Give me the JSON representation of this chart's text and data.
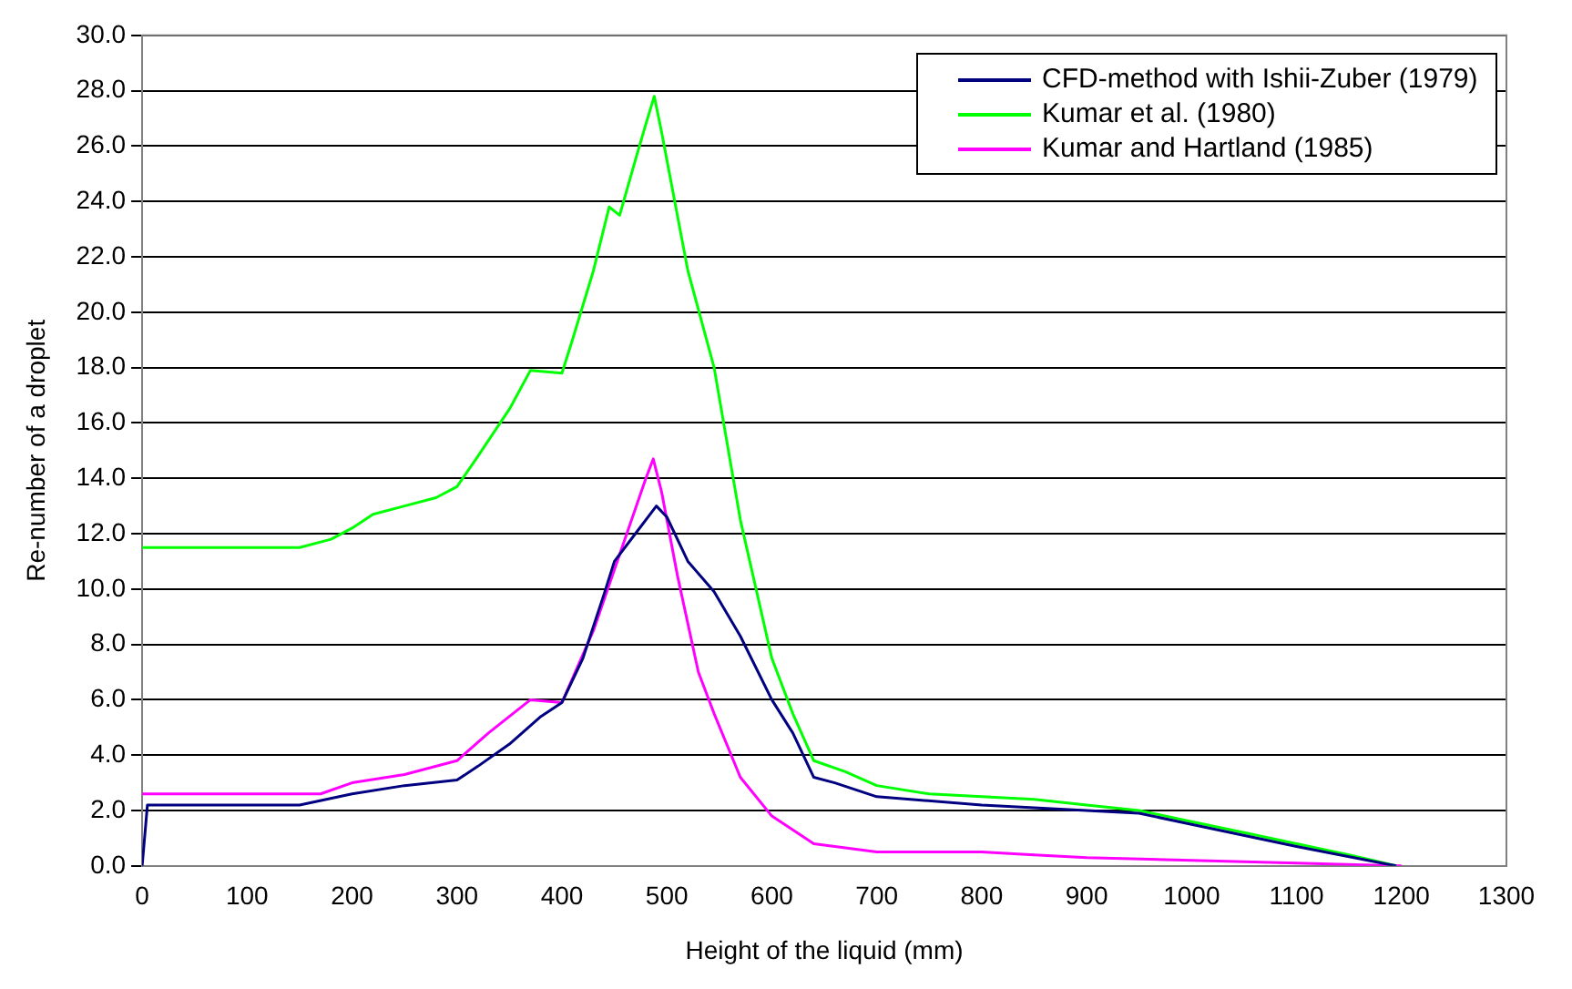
{
  "chart_data": {
    "type": "line",
    "xlabel": "Height of the liquid (mm)",
    "ylabel": "Re-number of a droplet",
    "xlim": [
      0,
      1300
    ],
    "xticks": [
      0,
      100,
      200,
      300,
      400,
      500,
      600,
      700,
      800,
      900,
      1000,
      1100,
      1200,
      1300
    ],
    "ylim": [
      0,
      30
    ],
    "yticks": [
      {
        "value": 0,
        "label": "0.0"
      },
      {
        "value": 2,
        "label": "2.0"
      },
      {
        "value": 4,
        "label": "4.0"
      },
      {
        "value": 6,
        "label": "6.0"
      },
      {
        "value": 8,
        "label": "8.0"
      },
      {
        "value": 10,
        "label": "10.0"
      },
      {
        "value": 12,
        "label": "12.0"
      },
      {
        "value": 14,
        "label": "14.0"
      },
      {
        "value": 16,
        "label": "16.0"
      },
      {
        "value": 18,
        "label": "18.0"
      },
      {
        "value": 20,
        "label": "20.0"
      },
      {
        "value": 22,
        "label": "22.0"
      },
      {
        "value": 24,
        "label": "24.0"
      },
      {
        "value": 26,
        "label": "26.0"
      },
      {
        "value": 28,
        "label": "28.0"
      },
      {
        "value": 30,
        "label": "30.0"
      }
    ],
    "grid": "y",
    "legend": "top right",
    "marker": "none",
    "line_style": "solid",
    "series": [
      {
        "name": "CFD-method with Ishii-Zuber (1979)",
        "color": "#000080",
        "x": [
          0,
          5,
          150,
          200,
          250,
          300,
          320,
          350,
          380,
          400,
          420,
          440,
          450,
          470,
          490,
          500,
          520,
          545,
          570,
          600,
          620,
          640,
          660,
          700,
          800,
          900,
          950,
          1000,
          1100,
          1195
        ],
        "values": [
          0,
          2.2,
          2.2,
          2.6,
          2.9,
          3.1,
          3.6,
          4.4,
          5.4,
          5.9,
          7.5,
          9.8,
          11.0,
          12.0,
          13.0,
          12.6,
          11.0,
          9.9,
          8.3,
          6.0,
          4.8,
          3.2,
          3.0,
          2.5,
          2.2,
          2.0,
          1.9,
          1.5,
          0.7,
          0
        ]
      },
      {
        "name": "Kumar et al. (1980)",
        "color": "#00ff00",
        "x": [
          0,
          150,
          180,
          200,
          220,
          250,
          280,
          300,
          320,
          350,
          370,
          400,
          410,
          430,
          445,
          455,
          470,
          480,
          488,
          495,
          500,
          520,
          545,
          570,
          600,
          620,
          640,
          670,
          700,
          750,
          800,
          850,
          900,
          950,
          1000,
          1050,
          1100,
          1150,
          1195
        ],
        "values": [
          11.5,
          11.5,
          11.8,
          12.2,
          12.7,
          13.0,
          13.3,
          13.7,
          14.8,
          16.5,
          17.9,
          17.8,
          19.0,
          21.5,
          23.8,
          23.5,
          25.5,
          26.8,
          27.8,
          26.5,
          25.5,
          21.5,
          18.0,
          12.5,
          7.5,
          5.5,
          3.8,
          3.4,
          2.9,
          2.6,
          2.5,
          2.4,
          2.2,
          2.0,
          1.6,
          1.2,
          0.8,
          0.4,
          0
        ]
      },
      {
        "name": "Kumar and Hartland (1985)",
        "color": "#ff00ff",
        "x": [
          0,
          170,
          200,
          250,
          300,
          330,
          370,
          400,
          430,
          460,
          480,
          487,
          495,
          510,
          530,
          545,
          570,
          600,
          640,
          660,
          700,
          800,
          850,
          900,
          1000,
          1100,
          1200
        ],
        "values": [
          2.6,
          2.6,
          3.0,
          3.3,
          3.8,
          4.8,
          6.0,
          5.9,
          8.5,
          11.8,
          14.0,
          14.7,
          13.5,
          10.5,
          7.0,
          5.5,
          3.2,
          1.8,
          0.8,
          0.7,
          0.5,
          0.5,
          0.4,
          0.3,
          0.2,
          0.1,
          0
        ]
      }
    ]
  }
}
